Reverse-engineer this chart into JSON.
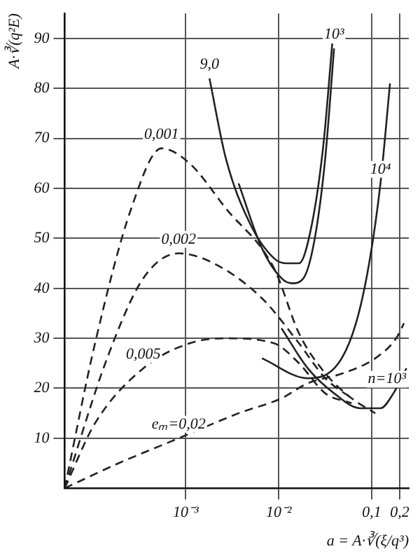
{
  "chart_data": {
    "type": "line",
    "xlabel": "a = A·∛(ξ/q³)",
    "ylabel": "A·∛(q²E)",
    "log": "x",
    "xlim": [
      5e-05,
      0.25
    ],
    "xticks": [
      {
        "value": 0.001,
        "label": "10⁻³"
      },
      {
        "value": 0.01,
        "label": "10⁻²"
      },
      {
        "value": 0.1,
        "label": "0,1"
      },
      {
        "value": 0.2,
        "label": "0,2"
      }
    ],
    "ylim": [
      0,
      95
    ],
    "yticks": [
      10,
      20,
      30,
      40,
      50,
      60,
      70,
      80,
      90
    ],
    "grid": true,
    "legend": false,
    "marker": "none",
    "series": [
      {
        "color": "#222222",
        "line_style": "dashed",
        "x": [
          5e-05,
          0.000106,
          0.00026,
          0.00055,
          0.0011,
          0.0027,
          0.0089,
          0.0165,
          0.0316,
          0.0607,
          0.109
        ],
        "values": [
          0,
          29,
          56,
          68,
          65,
          56,
          44,
          31,
          23,
          18,
          15
        ]
      },
      {
        "color": "#222222",
        "line_style": "dashed",
        "x": [
          5e-05,
          0.000143,
          0.00035,
          0.00084,
          0.002,
          0.0066,
          0.0165,
          0.0316,
          0.0607
        ],
        "values": [
          0,
          26,
          42,
          47,
          45,
          38,
          29,
          22,
          18
        ]
      },
      {
        "color": "#222222",
        "line_style": "dashed",
        "x": [
          5e-05,
          0.000106,
          0.00035,
          0.0011,
          0.0027,
          0.0089,
          0.0165,
          0.0316,
          0.0607
        ],
        "values": [
          0,
          13,
          24,
          29,
          30,
          29,
          25,
          19,
          17
        ]
      },
      {
        "color": "#222222",
        "line_style": "dashed",
        "x": [
          5e-05,
          0.00019,
          0.00084,
          0.0037,
          0.0107,
          0.0205,
          0.0489,
          0.109,
          0.183,
          0.222
        ],
        "values": [
          0,
          5,
          10,
          15,
          18,
          21,
          23,
          26,
          30,
          33
        ]
      },
      {
        "color": "#222222",
        "line_style": "solid",
        "x": [
          0.0018,
          0.0027,
          0.0049,
          0.0089,
          0.0119,
          0.0165,
          0.0228,
          0.0303,
          0.0376
        ],
        "values": [
          82,
          66,
          53,
          46,
          45,
          45,
          53,
          69,
          89
        ]
      },
      {
        "color": "#222222",
        "line_style": "solid",
        "x": [
          0.0037,
          0.0066,
          0.0107,
          0.0139,
          0.0184,
          0.0244,
          0.0316,
          0.0393
        ],
        "values": [
          61,
          48,
          42,
          41,
          42,
          50,
          66,
          88
        ]
      },
      {
        "color": "#222222",
        "line_style": "solid",
        "x": [
          0.0066,
          0.0205,
          0.0438,
          0.0676,
          0.0937,
          0.124,
          0.157
        ],
        "values": [
          26,
          22,
          25,
          33,
          45,
          61,
          81
        ]
      },
      {
        "color": "#222222",
        "line_style": "solid",
        "x": [
          0.0107,
          0.0205,
          0.0393,
          0.0753,
          0.124,
          0.171,
          0.236
        ],
        "values": [
          32,
          24,
          19,
          16,
          16,
          19,
          24
        ]
      }
    ],
    "annotations": [
      {
        "text": "0,001",
        "x": 0.00055,
        "y": 68
      },
      {
        "text": "0,002",
        "x": 0.00084,
        "y": 47
      },
      {
        "text": "0,005",
        "x": 0.00035,
        "y": 24
      },
      {
        "text": "eₘ=0,02",
        "x": 0.00084,
        "y": 10
      },
      {
        "text": "9,0",
        "x": 0.0018,
        "y": 82
      },
      {
        "text": "10³",
        "x": 0.0393,
        "y": 88
      },
      {
        "text": "10⁴",
        "x": 0.124,
        "y": 61
      },
      {
        "text": "n=10³",
        "x": 0.171,
        "y": 19
      }
    ]
  }
}
